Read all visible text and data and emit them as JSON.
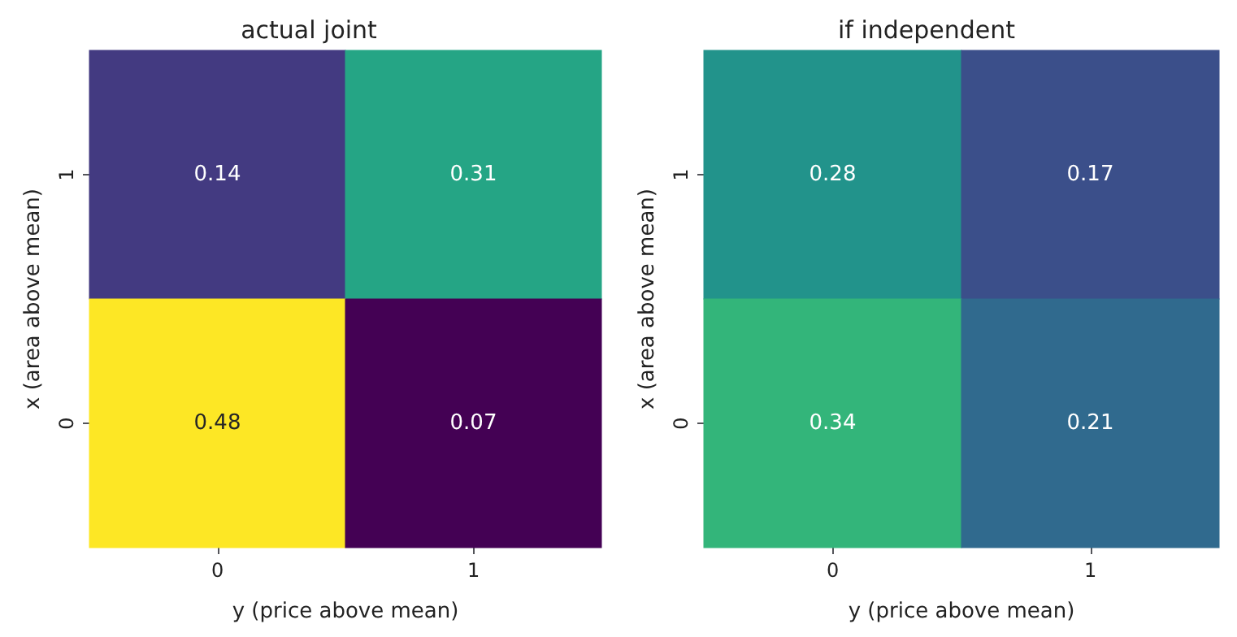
{
  "chart_data": [
    {
      "type": "heatmap",
      "title": "actual joint",
      "xlabel": "y (price above mean)",
      "ylabel": "x (area above mean)",
      "categories": [
        "0",
        "1"
      ],
      "y_categories": [
        "1",
        "0"
      ],
      "cells": [
        [
          0.14,
          0.31
        ],
        [
          0.48,
          0.07
        ]
      ],
      "data_labels": true
    },
    {
      "type": "heatmap",
      "title": "if independent",
      "xlabel": "y (price above mean)",
      "ylabel": "x (area above mean)",
      "categories": [
        "0",
        "1"
      ],
      "y_categories": [
        "1",
        "0"
      ],
      "cells": [
        [
          0.28,
          0.17
        ],
        [
          0.34,
          0.21
        ]
      ],
      "data_labels": true
    }
  ]
}
